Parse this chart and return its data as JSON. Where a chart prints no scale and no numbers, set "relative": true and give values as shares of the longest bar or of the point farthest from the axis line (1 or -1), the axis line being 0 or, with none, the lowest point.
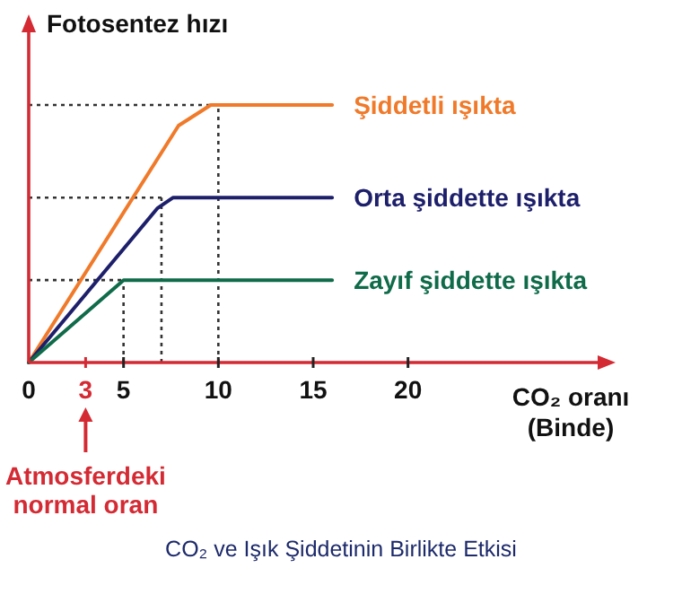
{
  "chart_data": {
    "type": "line",
    "relative": true,
    "ylabel": "Fotosentez hızı",
    "xlabel": "CO₂ oranı\n(Binde)",
    "xlim": [
      0,
      30
    ],
    "xticks": [
      0,
      3,
      5,
      10,
      15,
      20
    ],
    "legend": false,
    "marker": "none",
    "line_style": "solid",
    "series": [
      {
        "name": "Şiddetli ışıkta",
        "color": "#f07a2a",
        "x": [
          0,
          7.9,
          9.6,
          16
        ],
        "values": [
          0,
          0.92,
          1,
          1
        ]
      },
      {
        "name": "Orta şiddette ışıkta",
        "color": "#1d1f6b",
        "x": [
          0,
          6.8,
          7.6,
          16
        ],
        "values": [
          0,
          0.6,
          0.64,
          0.64
        ]
      },
      {
        "name": "Zayıf şiddette ışıkta",
        "color": "#0f6b4a",
        "x": [
          0,
          5,
          16
        ],
        "values": [
          0,
          0.32,
          0.32
        ]
      }
    ],
    "ref_lines": [
      {
        "axis": "y",
        "value": 1,
        "line_style": "dotted",
        "color": "#333333"
      },
      {
        "axis": "x",
        "value": 10,
        "line_style": "dotted",
        "color": "#333333"
      },
      {
        "axis": "y",
        "value": 0.64,
        "line_style": "dotted",
        "color": "#333333"
      },
      {
        "axis": "x",
        "value": 7,
        "line_style": "dotted",
        "color": "#333333"
      },
      {
        "axis": "y",
        "value": 0.32,
        "line_style": "dotted",
        "color": "#333333"
      },
      {
        "axis": "x",
        "value": 5,
        "line_style": "dotted",
        "color": "#333333"
      }
    ],
    "annotations": [
      "Atmosferdeki normal oran",
      "CO₂ ve Işık Şiddetinin Birlikte Etkisi"
    ]
  }
}
